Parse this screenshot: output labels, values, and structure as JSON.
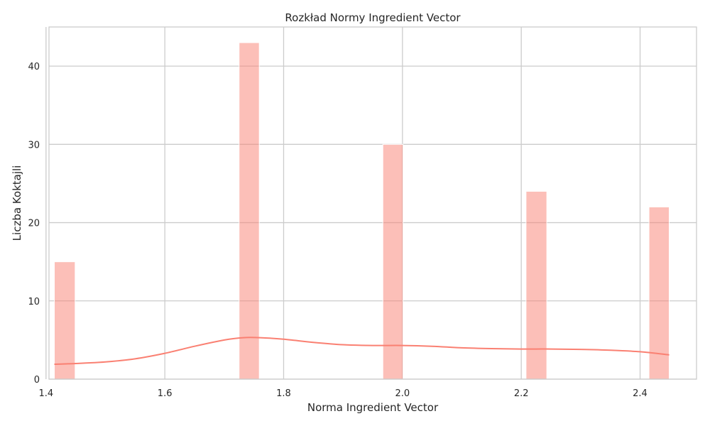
{
  "chart_data": {
    "type": "bar",
    "title": "Rozkład Normy Ingredient Vector",
    "xlabel": "Norma Ingredient Vector",
    "ylabel": "Liczba Koktajli",
    "xlim": [
      1.405,
      2.495
    ],
    "ylim": [
      0,
      45
    ],
    "grid": true,
    "x_ticks": [
      1.4,
      1.6,
      1.8,
      2.0,
      2.2,
      2.4
    ],
    "x_tick_labels": [
      "1.4",
      "1.6",
      "1.8",
      "2.0",
      "2.2",
      "2.4"
    ],
    "y_ticks": [
      0,
      10,
      20,
      30,
      40
    ],
    "y_tick_labels": [
      "0",
      "10",
      "20",
      "30",
      "40"
    ],
    "bars": [
      {
        "x0": 1.414,
        "x1": 1.449,
        "count": 15
      },
      {
        "x0": 1.725,
        "x1": 1.759,
        "count": 43
      },
      {
        "x0": 1.967,
        "x1": 2.001,
        "count": 30
      },
      {
        "x0": 2.208,
        "x1": 2.243,
        "count": 24
      },
      {
        "x0": 2.415,
        "x1": 2.449,
        "count": 22
      }
    ],
    "kde_line": {
      "color": "#fa8072",
      "x": [
        1.414,
        1.45,
        1.5,
        1.55,
        1.6,
        1.65,
        1.7,
        1.732,
        1.76,
        1.8,
        1.85,
        1.9,
        1.95,
        2.0,
        2.05,
        2.1,
        2.15,
        2.2,
        2.25,
        2.3,
        2.35,
        2.4,
        2.449
      ],
      "y": [
        1.9,
        2.0,
        2.2,
        2.6,
        3.3,
        4.2,
        5.0,
        5.3,
        5.3,
        5.1,
        4.7,
        4.4,
        4.3,
        4.3,
        4.2,
        4.0,
        3.9,
        3.85,
        3.85,
        3.8,
        3.7,
        3.5,
        3.1
      ]
    },
    "bar_color": "#fa8072"
  }
}
